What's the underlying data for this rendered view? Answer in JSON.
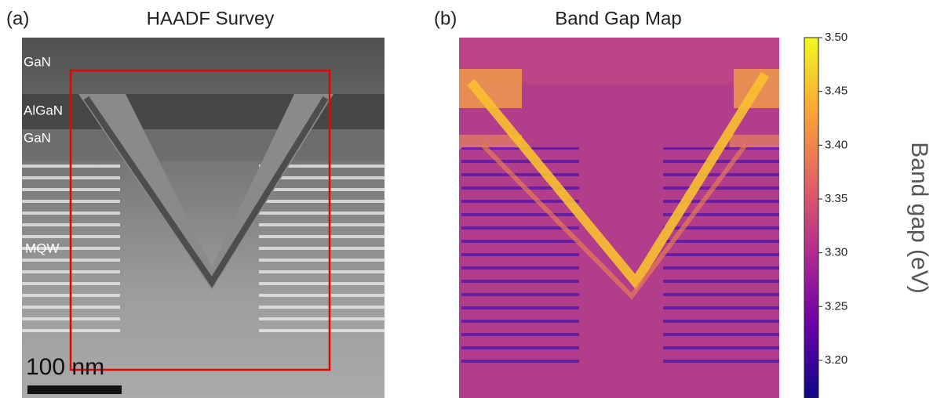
{
  "panel_a": {
    "label": "(a)",
    "title": "HAADF Survey",
    "annotations": [
      "GaN",
      "AlGaN",
      "GaN",
      "MQW"
    ],
    "scale_bar": "100 nm"
  },
  "panel_b": {
    "label": "(b)",
    "title": "Band Gap Map",
    "colorbar": {
      "label": "Band gap (eV)",
      "lim": [
        3.165,
        3.5
      ],
      "ticks": [
        {
          "value": 3.2,
          "label": "3.20"
        },
        {
          "value": 3.25,
          "label": "3.25"
        },
        {
          "value": 3.3,
          "label": "3.30"
        },
        {
          "value": 3.35,
          "label": "3.35"
        },
        {
          "value": 3.4,
          "label": "3.40"
        },
        {
          "value": 3.45,
          "label": "3.45"
        },
        {
          "value": 3.5,
          "label": "3.50"
        }
      ]
    }
  }
}
